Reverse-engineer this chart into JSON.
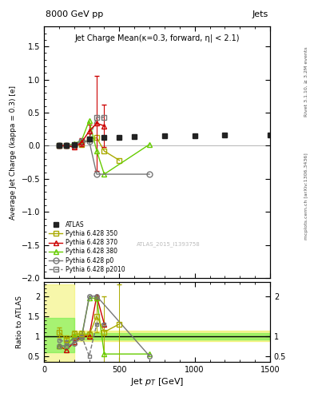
{
  "title_top": "8000 GeV pp",
  "title_top_right": "Jets",
  "plot_title": "Jet Charge Mean(κ=0.3, forward, η| < 2.1)",
  "ylabel_main": "Average Jet Charge (kappa = 0.3) [e]",
  "ylabel_ratio": "Ratio to ATLAS",
  "xlabel": "Jet p_{T} [GeV]",
  "right_label": "Rivet 3.1.10, ≥ 3.2M events",
  "right_label2": "mcplots.cern.ch [arXiv:1306.3436]",
  "watermark": "ATLAS_2015_I1393758",
  "atlas_x": [
    100,
    150,
    200,
    300,
    400,
    500,
    600,
    800,
    1000,
    1200,
    1500
  ],
  "atlas_y": [
    0.0,
    0.0,
    0.02,
    0.1,
    0.12,
    0.12,
    0.14,
    0.15,
    0.15,
    0.16,
    0.16
  ],
  "atlas_yerr": [
    0.02,
    0.015,
    0.015,
    0.015,
    0.015,
    0.015,
    0.015,
    0.015,
    0.015,
    0.015,
    0.015
  ],
  "p350_x": [
    100,
    150,
    200,
    250,
    300,
    350,
    400,
    500
  ],
  "p350_y": [
    0.0,
    0.0,
    0.0,
    0.02,
    0.1,
    0.12,
    -0.08,
    -0.22
  ],
  "p370_x": [
    100,
    150,
    200,
    250,
    300,
    350,
    400
  ],
  "p370_y": [
    0.0,
    0.0,
    -0.02,
    0.05,
    0.22,
    0.34,
    0.3
  ],
  "p370_yerr": [
    0.01,
    0.01,
    0.01,
    0.06,
    0.1,
    0.72,
    0.32
  ],
  "p380_x": [
    100,
    150,
    200,
    250,
    300,
    350,
    400,
    700
  ],
  "p380_y": [
    0.0,
    0.0,
    0.03,
    0.08,
    0.38,
    -0.08,
    -0.43,
    0.02
  ],
  "p0_x": [
    100,
    150,
    200,
    250,
    300,
    350,
    700
  ],
  "p0_y": [
    0.0,
    0.0,
    0.01,
    0.06,
    0.07,
    -0.43,
    -0.43
  ],
  "p2010_x": [
    100,
    150,
    200,
    250,
    300,
    350,
    400
  ],
  "p2010_y": [
    0.0,
    0.0,
    0.01,
    0.07,
    0.1,
    0.43,
    0.43
  ],
  "color_atlas": "#222222",
  "color_p350": "#aaaa00",
  "color_p370": "#cc0000",
  "color_p380": "#66cc00",
  "color_p0": "#777777",
  "color_p2010": "#777777",
  "ratio_band_green_lo": 0.92,
  "ratio_band_green_hi": 1.08,
  "ratio_band_yellow_narrow_lo": 0.87,
  "ratio_band_yellow_narrow_hi": 1.13,
  "ratio_band_green_wide_lo": 0.6,
  "ratio_band_green_wide_hi": 1.45,
  "ratio_band_yellow_wide_lo": 0.35,
  "ratio_band_yellow_wide_hi": 2.3,
  "ratio_wide_xlim": 200,
  "p350_ratio_x": [
    100,
    150,
    200,
    250,
    300,
    350,
    400,
    500
  ],
  "p350_ratio_y": [
    1.1,
    0.92,
    1.05,
    1.05,
    1.03,
    1.5,
    1.1,
    1.3
  ],
  "p350_ratio_yerr": [
    0.12,
    0.1,
    0.08,
    0.08,
    0.08,
    0.4,
    0.9,
    1.0
  ],
  "p370_ratio_x": [
    100,
    150,
    200,
    250,
    300,
    350,
    400
  ],
  "p370_ratio_y": [
    0.75,
    0.65,
    0.85,
    1.0,
    1.0,
    2.0,
    1.3
  ],
  "p380_ratio_x": [
    100,
    150,
    200,
    250,
    300,
    350,
    400,
    700
  ],
  "p380_ratio_y": [
    0.75,
    0.75,
    1.0,
    1.0,
    1.95,
    1.95,
    0.55,
    0.55
  ],
  "p0_ratio_x": [
    100,
    150,
    200,
    250,
    300,
    350,
    700
  ],
  "p0_ratio_y": [
    0.75,
    0.75,
    0.82,
    0.95,
    2.0,
    2.0,
    0.5
  ],
  "p2010_ratio_x": [
    100,
    150,
    200,
    250,
    300,
    350,
    400
  ],
  "p2010_ratio_y": [
    0.9,
    0.85,
    0.92,
    1.0,
    0.5,
    1.3,
    1.3
  ],
  "ylim_main": [
    -2.0,
    1.8
  ],
  "ylim_ratio": [
    0.35,
    2.35
  ],
  "xlim": [
    0,
    1500
  ]
}
